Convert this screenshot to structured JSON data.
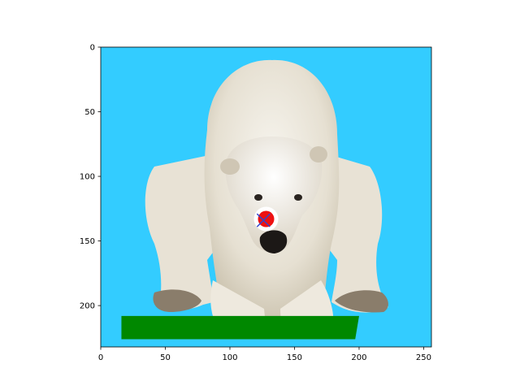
{
  "chart_data": {
    "type": "image",
    "title": "",
    "xlabel": "",
    "ylabel": "",
    "xlim": [
      0,
      256
    ],
    "ylim": [
      232,
      0
    ],
    "xticks": [
      0,
      50,
      100,
      150,
      200,
      250
    ],
    "yticks": [
      0,
      50,
      100,
      150,
      200
    ],
    "grid": false,
    "legend": "none",
    "image": {
      "description_icon": "polar-bear-photo",
      "background_color": "#33ccff",
      "extent_x": [
        0,
        256
      ],
      "extent_y": [
        0,
        232
      ]
    },
    "annotations": {
      "ground_patch": {
        "color": "#008800",
        "polygon": [
          [
            16,
            208
          ],
          [
            200,
            208
          ],
          [
            197,
            226
          ],
          [
            16,
            226
          ]
        ]
      },
      "target_marker": {
        "x": 128,
        "y": 133,
        "fill_color": "#ee1111",
        "ring_color": "#ffffff"
      },
      "cross_marker": {
        "x": 126,
        "y": 134,
        "color": "#3344cc"
      }
    }
  }
}
